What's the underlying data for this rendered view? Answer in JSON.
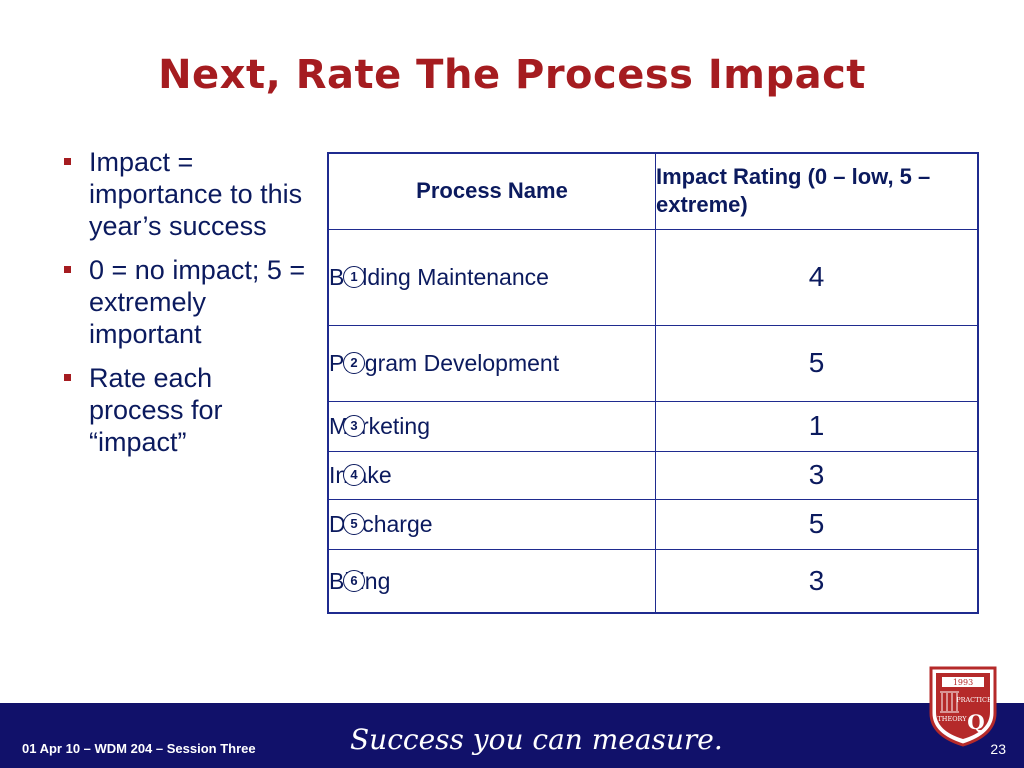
{
  "slide": {
    "title": "Next, Rate The Process Impact",
    "bullets": [
      "Impact = importance to this year’s success",
      "0 = no impact; 5 = extremely important",
      "Rate each process for “impact”"
    ]
  },
  "table": {
    "headers": {
      "process_name": "Process Name",
      "impact_rating": "Impact Rating (0 – low, 5 – extreme)"
    },
    "rows": [
      {
        "num": "1",
        "name": "Building Maintenance",
        "rating": "4"
      },
      {
        "num": "2",
        "name": "Program Development",
        "rating": "5"
      },
      {
        "num": "3",
        "name": "Marketing",
        "rating": "1"
      },
      {
        "num": "4",
        "name": "Intake",
        "rating": "3"
      },
      {
        "num": "5",
        "name": "Discharge",
        "rating": "5"
      },
      {
        "num": "6",
        "name": "Billing",
        "rating": "3"
      }
    ]
  },
  "footer": {
    "left_text": "01 Apr 10  – WDM 204 – Session Three",
    "tagline": "Success you can measure.",
    "page_number": "23"
  },
  "logo": {
    "year": "1993",
    "line1": "PRACTICE",
    "line2": "THEORY",
    "letter": "Q"
  },
  "colors": {
    "title": "#a51c20",
    "text": "#0b1a5e",
    "table_border": "#1f2b8f",
    "footer_bg": "#11116a",
    "logo_red": "#b52a2a"
  }
}
